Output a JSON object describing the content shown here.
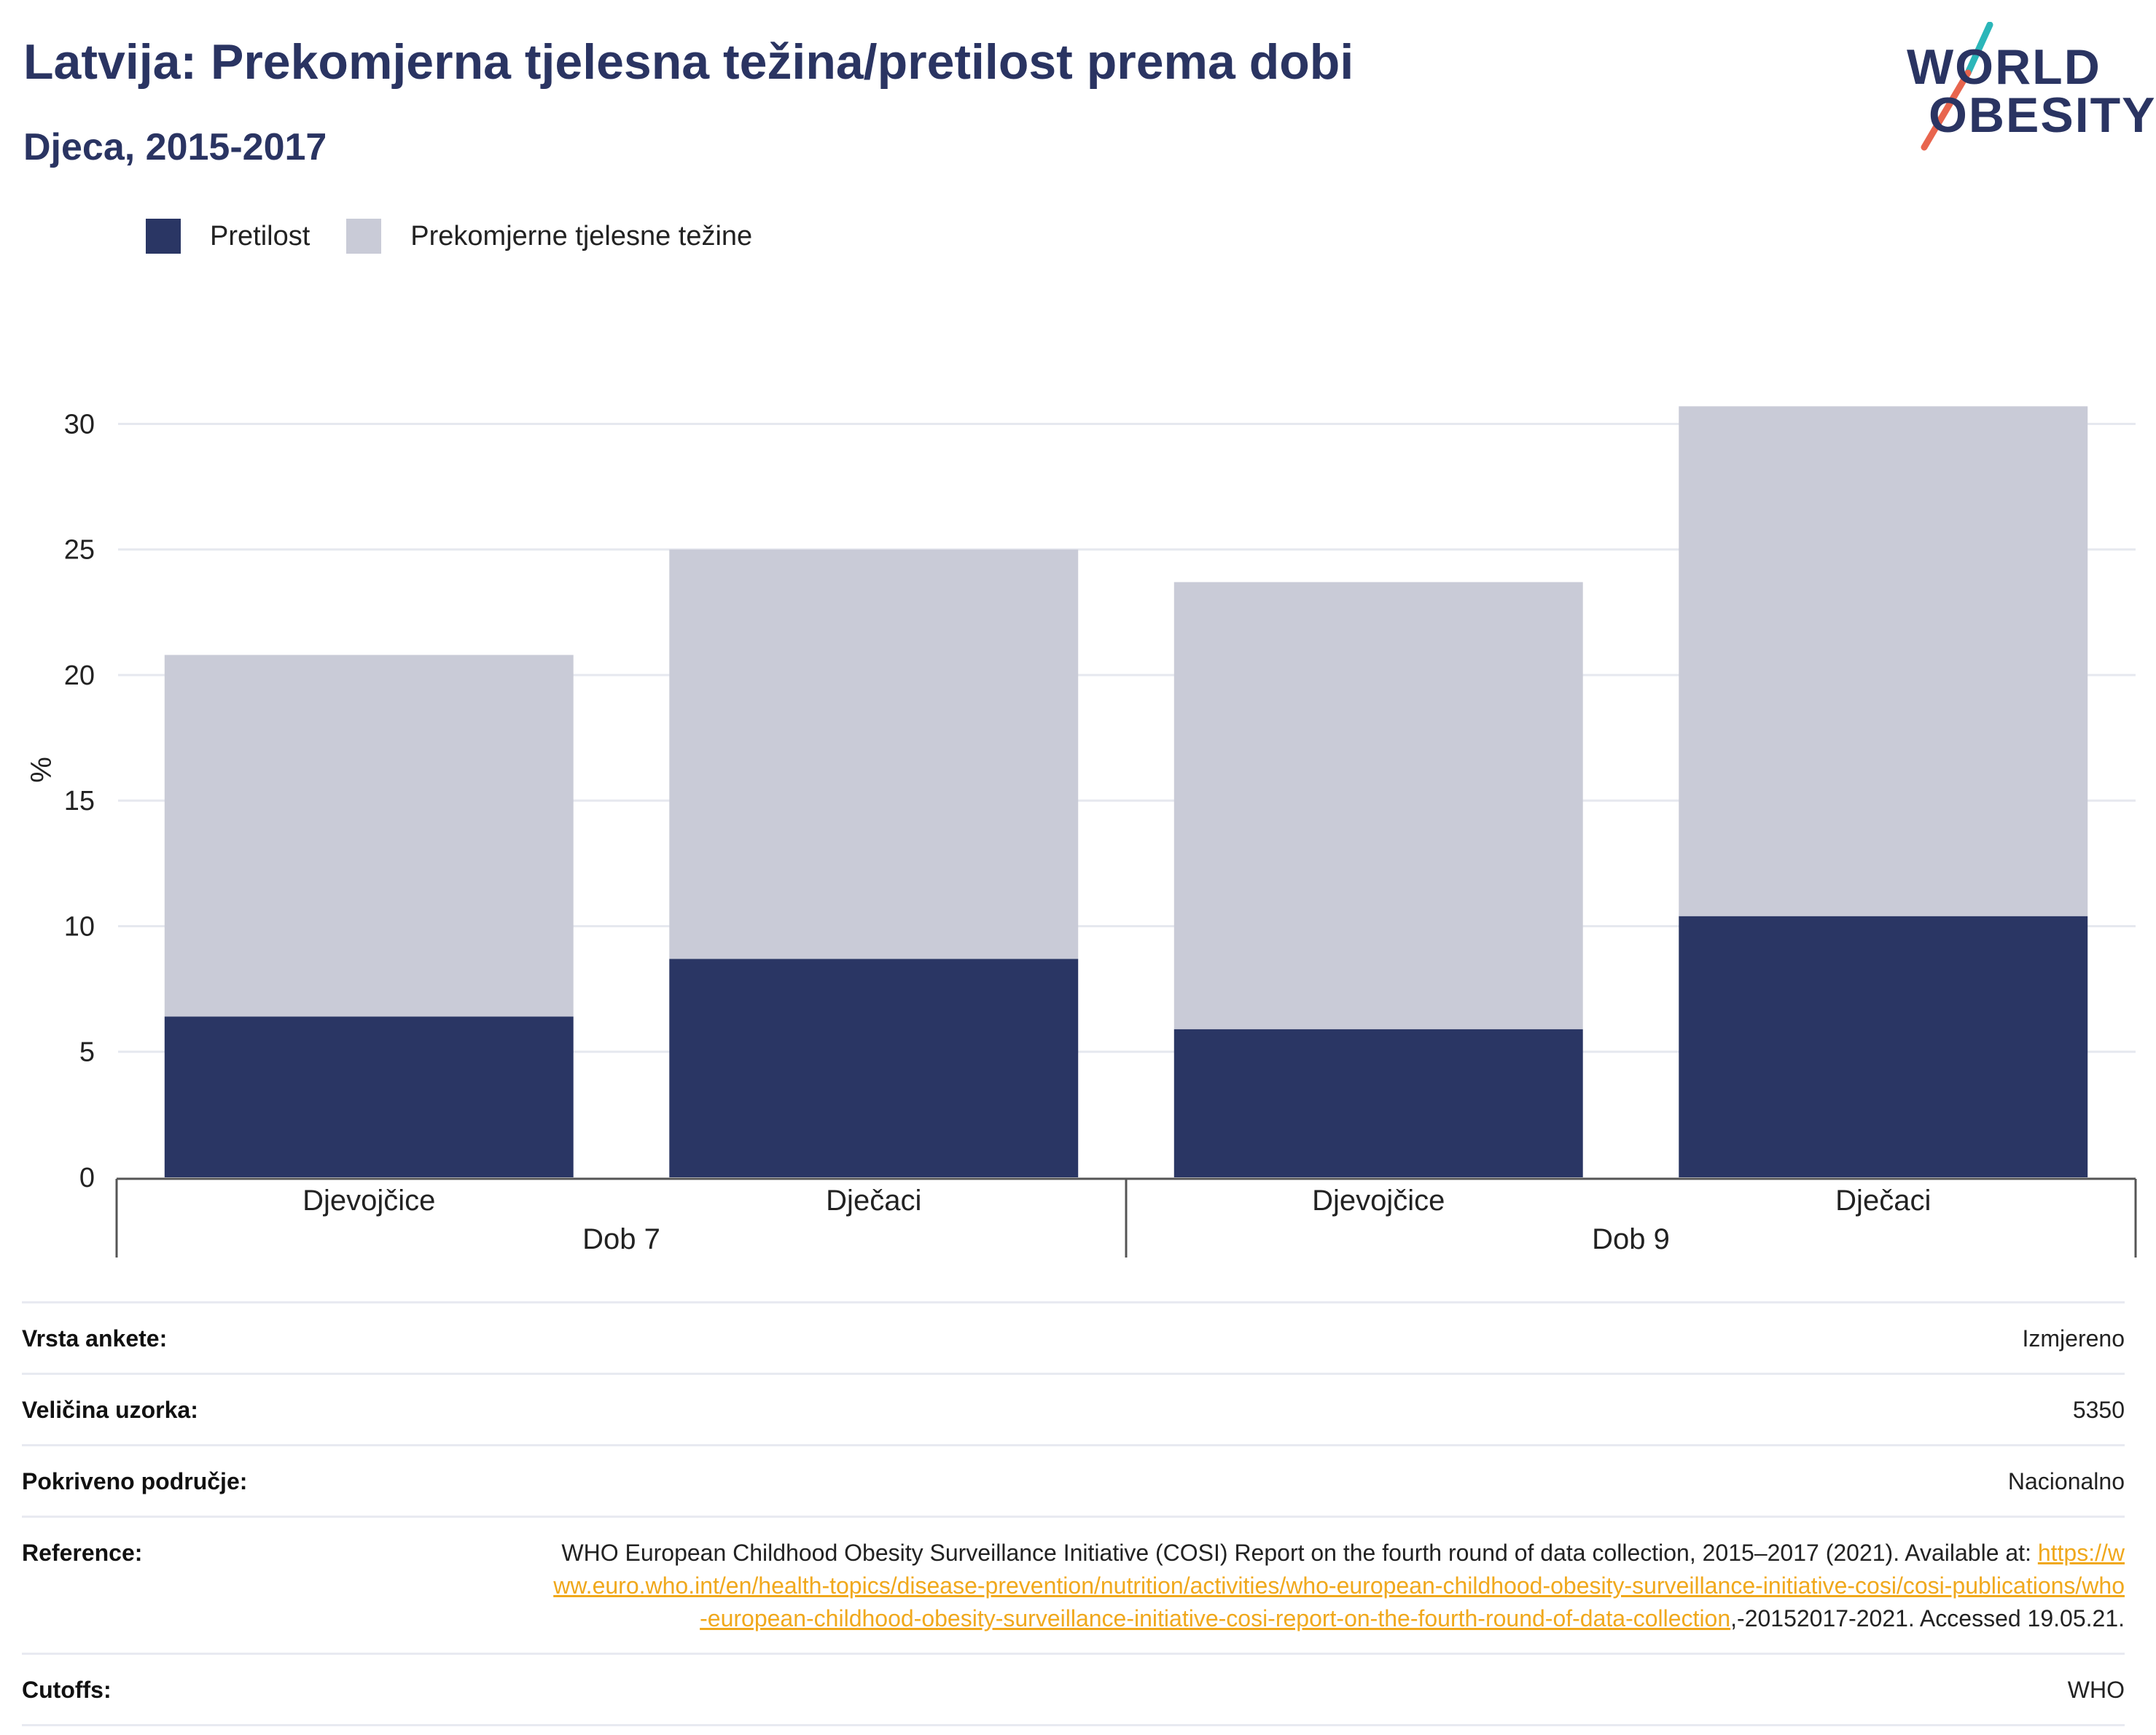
{
  "title": "Latvija: Prekomjerna tjelesna težina/pretilost prema dobi",
  "subtitle": "Djeca, 2015-2017",
  "logo": {
    "line1": "WORLD",
    "line2": "OBESITY",
    "slash_top": "#2bb6b9",
    "slash_bottom": "#e8654e"
  },
  "legend": [
    {
      "label": "Pretilost",
      "color": "#2a3664"
    },
    {
      "label": "Prekomjerne tjelesne težine",
      "color": "#c9cbd7"
    }
  ],
  "chart_data": {
    "type": "bar",
    "stacked": true,
    "ylabel": "%",
    "ylim": [
      0,
      31
    ],
    "yticks": [
      0,
      5,
      10,
      15,
      20,
      25,
      30
    ],
    "grid": true,
    "legend_position": "top-left",
    "categories": [
      "Djevojčice",
      "Dječaci",
      "Djevojčice",
      "Dječaci"
    ],
    "groups": [
      {
        "label": "Dob 7",
        "categories": [
          "Djevojčice",
          "Dječaci"
        ]
      },
      {
        "label": "Dob 9",
        "categories": [
          "Djevojčice",
          "Dječaci"
        ]
      }
    ],
    "series": [
      {
        "name": "Pretilost",
        "color": "#2a3664",
        "values": [
          6.4,
          8.7,
          5.9,
          10.4
        ]
      },
      {
        "name": "Prekomjerne tjelesne težine",
        "color": "#c9cbd7",
        "values": [
          14.4,
          16.3,
          17.8,
          20.3
        ]
      }
    ]
  },
  "meta": {
    "survey_type": {
      "label": "Vrsta ankete:",
      "value": "Izmjereno"
    },
    "sample_size": {
      "label": "Veličina uzorka:",
      "value": "5350"
    },
    "coverage": {
      "label": "Pokriveno područje:",
      "value": "Nacionalno"
    },
    "reference": {
      "label": "Reference:",
      "text_before": "WHO European Childhood Obesity Surveillance Initiative (COSI) Report on the fourth round of data collection, 2015–2017 (2021). Available at: ",
      "link": "https://www.euro.who.int/en/health-topics/disease-prevention/nutrition/activities/who-european-childhood-obesity-surveillance-initiative-cosi/cosi-publications/who-european-childhood-obesity-surveillance-initiative-cosi-report-on-the-fourth-round-of-data-collection",
      "text_after": ",-20152017-2021. Accessed 19.05.21."
    },
    "cutoffs": {
      "label": "Cutoffs:",
      "value": "WHO"
    }
  }
}
